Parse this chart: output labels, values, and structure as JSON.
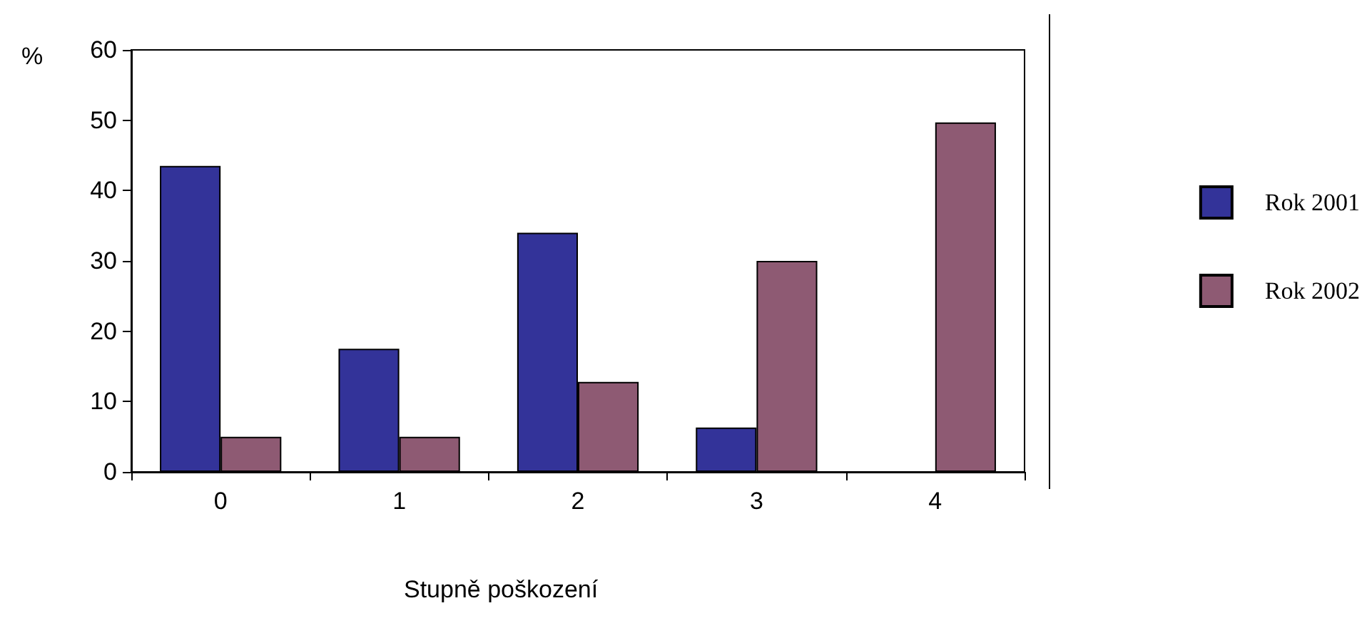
{
  "chart_data": {
    "type": "bar",
    "xlabel": "Stupně poškození",
    "ylabel": "%",
    "categories": [
      "0",
      "1",
      "2",
      "3",
      "4"
    ],
    "series": [
      {
        "name": "Rok 2001",
        "color": "#333399",
        "values": [
          43.5,
          17.5,
          34,
          6.3,
          null
        ]
      },
      {
        "name": "Rok 2002",
        "color": "#8e5a73",
        "values": [
          5,
          5,
          12.8,
          30,
          49.7
        ]
      }
    ],
    "ylim": [
      0,
      60
    ],
    "yticks": [
      0,
      10,
      20,
      30,
      40,
      50,
      60
    ],
    "grid": false,
    "legend": "right"
  }
}
